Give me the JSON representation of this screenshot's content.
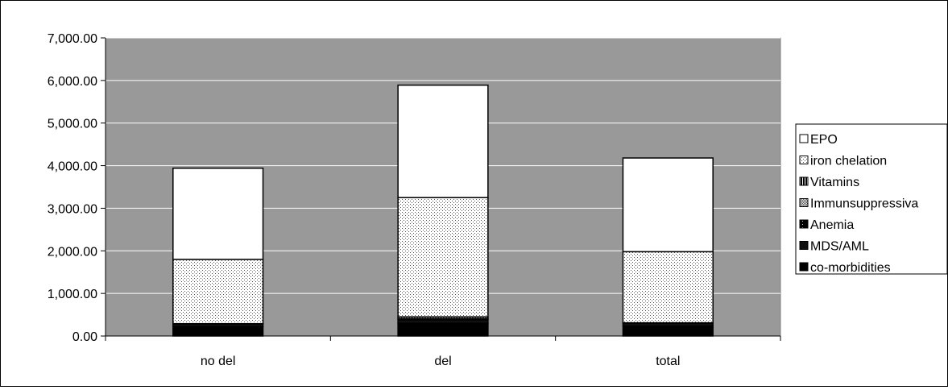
{
  "chart_data": {
    "type": "bar",
    "stacked": true,
    "categories": [
      "no del",
      "del",
      "total"
    ],
    "series": [
      {
        "name": "co-morbidities",
        "values": [
          220,
          300,
          240
        ]
      },
      {
        "name": "MDS/AML",
        "values": [
          60,
          80,
          60
        ]
      },
      {
        "name": "Anemia",
        "values": [
          10,
          30,
          10
        ]
      },
      {
        "name": "Immunsuppressiva",
        "values": [
          0,
          40,
          0
        ]
      },
      {
        "name": "Vitamins",
        "values": [
          0,
          0,
          0
        ]
      },
      {
        "name": "iron chelation",
        "values": [
          1510,
          2800,
          1670
        ]
      },
      {
        "name": "EPO",
        "values": [
          2140,
          2640,
          2200
        ]
      }
    ],
    "y_ticks": [
      "0.00",
      "1,000.00",
      "2,000.00",
      "3,000.00",
      "4,000.00",
      "5,000.00",
      "6,000.00",
      "7,000.00"
    ],
    "ylim": [
      0,
      7000
    ],
    "title": "",
    "xlabel": "",
    "ylabel": "",
    "grid": true,
    "legend_position": "right",
    "colors": {
      "plot_background": "#999999",
      "gridline": "#ffffff",
      "EPO": "#ffffff",
      "iron chelation": "#dcdcdc",
      "Vitamins": "#555555",
      "Immunsuppressiva": "#888888",
      "Anemia": "#111111",
      "MDS/AML": "#111111",
      "co-morbidities": "#000000"
    }
  }
}
